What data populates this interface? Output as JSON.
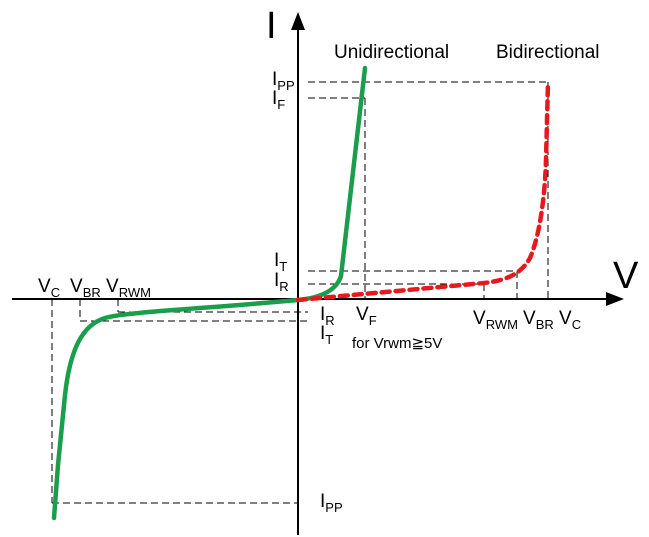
{
  "axes": {
    "current_label": "I",
    "voltage_label": "V"
  },
  "legend": {
    "unidirectional": "Unidirectional",
    "bidirectional": "Bidirectional"
  },
  "labels": {
    "ipp_top_main": "I",
    "ipp_top_sub": "PP",
    "if_main": "I",
    "if_sub": "F",
    "it_top_main": "I",
    "it_top_sub": "T",
    "ir_top_main": "I",
    "ir_top_sub": "R",
    "vc_left_main": "V",
    "vc_left_sub": "C",
    "vbr_left_main": "V",
    "vbr_left_sub": "BR",
    "vrwm_left_main": "V",
    "vrwm_left_sub": "RWM",
    "ir_bottom_main": "I",
    "ir_bottom_sub": "R",
    "it_bottom_main": "I",
    "it_bottom_sub": "T",
    "vf_main": "V",
    "vf_sub": "F",
    "note": "for Vrwm≧5V",
    "vrwm_right_main": "V",
    "vrwm_right_sub": "RWM",
    "vbr_right_main": "V",
    "vbr_right_sub": "BR",
    "vc_right_main": "V",
    "vc_right_sub": "C",
    "ipp_bottom_main": "I",
    "ipp_bottom_sub": "PP"
  },
  "colors": {
    "unidirectional_curve": "#1a9e4b",
    "bidirectional_curve": "#e8191e",
    "axis": "#000000"
  }
}
